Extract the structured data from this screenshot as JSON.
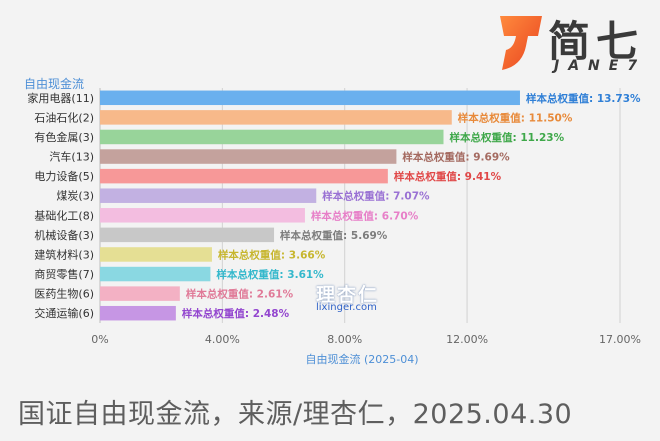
{
  "footer": "国证自由现金流，来源/理杏仁，2025.04.30",
  "logo": {
    "cn": "简七",
    "en": "JANE7"
  },
  "watermark": {
    "cn": "理杏仁",
    "url": "lixinger.com"
  },
  "chart_data": {
    "type": "bar",
    "orientation": "horizontal",
    "title": "自由现金流",
    "xlabel": "自由现金流 (2025-04)",
    "ylabel": "",
    "xlim": [
      0,
      17
    ],
    "xticks": [
      "0%",
      "4.00%",
      "8.00%",
      "12.00%",
      "17.00%"
    ],
    "xtick_values": [
      0,
      4,
      8,
      12,
      17
    ],
    "grid": true,
    "label_prefix": "样本总权重值: ",
    "categories": [
      "家用电器(11)",
      "石油石化(2)",
      "有色金属(3)",
      "汽车(13)",
      "电力设备(5)",
      "煤炭(3)",
      "基础化工(8)",
      "机械设备(3)",
      "建筑材料(3)",
      "商贸零售(7)",
      "医药生物(6)",
      "交通运输(6)"
    ],
    "values": [
      13.73,
      11.5,
      11.23,
      9.69,
      9.41,
      7.07,
      6.7,
      5.69,
      3.66,
      3.61,
      2.61,
      2.48
    ],
    "value_labels": [
      "13.73%",
      "11.50%",
      "11.23%",
      "9.69%",
      "9.41%",
      "7.07%",
      "6.70%",
      "5.69%",
      "3.66%",
      "3.61%",
      "2.61%",
      "2.48%"
    ],
    "colors": [
      "#6ab0ee",
      "#f7b98a",
      "#98d49a",
      "#c4a29d",
      "#f79898",
      "#c2b1e2",
      "#f3bde0",
      "#c8c8c8",
      "#e5df94",
      "#8ad8e2",
      "#f3b1c4",
      "#c696e4"
    ],
    "label_colors": [
      "#2f7fd6",
      "#e88a3a",
      "#3fa84a",
      "#a46a60",
      "#e04848",
      "#9a72d4",
      "#e77fc8",
      "#7d7d7d",
      "#c7b62e",
      "#34b8cc",
      "#e07a98",
      "#9346cf"
    ]
  }
}
